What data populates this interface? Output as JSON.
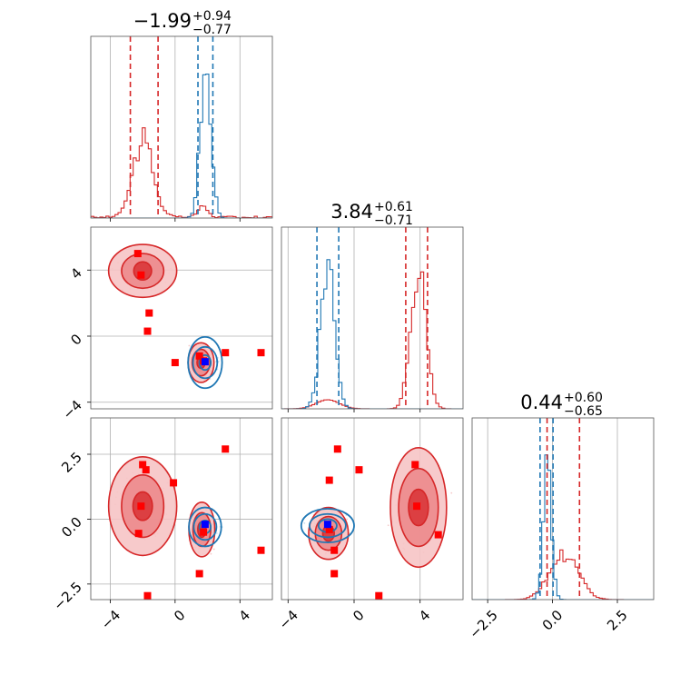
{
  "colors": {
    "red": "#d62728",
    "blue": "#1f77b4",
    "grid": "#b0b0b0",
    "marker_blue": "#0000ff",
    "marker_red": "#ff0000"
  },
  "chart_data": {
    "type": "corner",
    "panels": [
      {
        "id": "hist_x",
        "type": "histogram",
        "title": {
          "value": "−1.99",
          "upper": "+0.94",
          "lower": "−0.77"
        },
        "xlim": [
          -5.2,
          6.0
        ],
        "xticks": [
          -4,
          0,
          4
        ],
        "quantiles": {
          "red": [
            -2.76,
            -1.05
          ],
          "blue": [
            1.41,
            2.33
          ]
        },
        "series": [
          {
            "color": "red",
            "center": -1.99,
            "sigma": 0.62,
            "peak": 0.42,
            "baseline": 0.01
          },
          {
            "color": "blue",
            "center": 1.88,
            "sigma": 0.32,
            "peak": 0.88,
            "baseline": 0.0
          }
        ]
      },
      {
        "id": "hist_y",
        "type": "histogram",
        "title": {
          "value": "3.84",
          "upper": "+0.61",
          "lower": "−0.71"
        },
        "xlim": [
          -4.4,
          6.6
        ],
        "xticks": [
          -4,
          0,
          4
        ],
        "tick_labels": [
          "−4",
          "0",
          "4"
        ],
        "quantiles": {
          "red": [
            3.13,
            4.45
          ],
          "blue": [
            -2.25,
            -0.93
          ]
        },
        "series": [
          {
            "color": "red",
            "center": 3.9,
            "sigma": 0.45,
            "peak": 0.82,
            "baseline": 0.0
          },
          {
            "color": "blue",
            "center": -1.6,
            "sigma": 0.42,
            "peak": 0.78,
            "baseline": 0.0
          }
        ]
      },
      {
        "id": "hist_z",
        "type": "histogram",
        "title": {
          "value": "0.44",
          "upper": "+0.60",
          "lower": "−0.65"
        },
        "xlim": [
          -3.1,
          3.9
        ],
        "xticks": [
          -2.5,
          0,
          2.5
        ],
        "tick_labels": [
          "−2.5",
          "0.0",
          "2.5"
        ],
        "quantiles": {
          "red": [
            -0.21,
            1.04
          ],
          "blue": [
            -0.48,
            0.02
          ]
        },
        "series": [
          {
            "color": "red",
            "center": 0.44,
            "sigma": 0.55,
            "peak": 0.25,
            "baseline": 0.0
          },
          {
            "color": "blue",
            "center": -0.2,
            "sigma": 0.16,
            "peak": 0.74,
            "baseline": 0.0
          }
        ]
      },
      {
        "id": "scatter_xy",
        "type": "contour",
        "xlim": [
          -5.2,
          6.0
        ],
        "ylim": [
          -4.4,
          6.6
        ],
        "yticks": [
          -4,
          0,
          4
        ],
        "ytick_labels": [
          "−4",
          "0",
          "4"
        ],
        "red_clusters": [
          {
            "cx": -2.0,
            "cy": 3.95,
            "rx": [
              0.55,
              1.3,
              2.1
            ],
            "ry": [
              0.55,
              1.05,
              1.6
            ]
          },
          {
            "cx": 1.6,
            "cy": -1.6,
            "rx": [
              0.25,
              0.55,
              0.8
            ],
            "ry": [
              0.35,
              0.8,
              1.2
            ]
          }
        ],
        "blue_cluster": {
          "cx": 1.85,
          "cy": -1.6,
          "rx": [
            0.35,
            0.75,
            1.05
          ],
          "ry": [
            0.45,
            0.95,
            1.55
          ]
        },
        "red_markers": [
          [
            -2.3,
            5.0
          ],
          [
            -2.1,
            3.7
          ],
          [
            -1.6,
            1.4
          ],
          [
            -1.7,
            0.3
          ],
          [
            0.0,
            -1.6
          ],
          [
            3.1,
            -1.0
          ],
          [
            5.3,
            -1.0
          ],
          [
            1.5,
            -1.2
          ],
          [
            1.75,
            -1.5
          ]
        ],
        "blue_marker": [
          1.85,
          -1.55
        ]
      },
      {
        "id": "scatter_xz",
        "type": "contour",
        "xlim": [
          -5.2,
          6.0
        ],
        "ylim": [
          -3.1,
          3.9
        ],
        "xticks": [
          -4,
          0,
          4
        ],
        "xtick_labels": [
          "−4",
          "0",
          "4"
        ],
        "yticks": [
          -2.5,
          0,
          2.5
        ],
        "ytick_labels": [
          "−2.5",
          "0.0",
          "2.5"
        ],
        "red_clusters": [
          {
            "cx": -2.0,
            "cy": 0.5,
            "rx": [
              0.6,
              1.3,
              2.1
            ],
            "ry": [
              0.55,
              1.2,
              1.9
            ]
          },
          {
            "cx": 1.65,
            "cy": -0.4,
            "rx": [
              0.25,
              0.55,
              0.8
            ],
            "ry": [
              0.3,
              0.65,
              1.05
            ]
          }
        ],
        "blue_cluster": {
          "cx": 1.85,
          "cy": -0.3,
          "rx": [
            0.35,
            0.7,
            1.0
          ],
          "ry": [
            0.25,
            0.5,
            0.75
          ]
        },
        "red_markers": [
          [
            -2.0,
            2.1
          ],
          [
            -1.8,
            1.9
          ],
          [
            -2.1,
            0.5
          ],
          [
            -2.25,
            -0.55
          ],
          [
            -0.1,
            1.4
          ],
          [
            3.1,
            2.7
          ],
          [
            5.3,
            -1.2
          ],
          [
            1.5,
            -2.1
          ],
          [
            -1.7,
            -2.95
          ],
          [
            1.75,
            -0.5
          ]
        ],
        "blue_marker": [
          1.85,
          -0.2
        ]
      },
      {
        "id": "scatter_yz",
        "type": "contour",
        "xlim": [
          -4.4,
          6.6
        ],
        "ylim": [
          -3.1,
          3.9
        ],
        "xticks": [
          -4,
          0,
          4
        ],
        "xtick_labels": [
          "−4",
          "0",
          "4"
        ],
        "red_clusters": [
          {
            "cx": 3.9,
            "cy": 0.45,
            "rx": [
              0.6,
              1.2,
              1.7
            ],
            "ry": [
              0.7,
              1.5,
              2.3
            ]
          },
          {
            "cx": -1.55,
            "cy": -0.55,
            "rx": [
              0.35,
              0.8,
              1.2
            ],
            "ry": [
              0.3,
              0.65,
              1.0
            ]
          }
        ],
        "blue_cluster": {
          "cx": -1.6,
          "cy": -0.25,
          "rx": [
            0.55,
            1.1,
            1.6
          ],
          "ry": [
            0.25,
            0.45,
            0.65
          ]
        },
        "red_markers": [
          [
            -1.0,
            2.7
          ],
          [
            -1.5,
            1.5
          ],
          [
            0.3,
            1.9
          ],
          [
            3.7,
            2.1
          ],
          [
            3.8,
            0.5
          ],
          [
            5.1,
            -0.6
          ],
          [
            -1.2,
            -1.2
          ],
          [
            -1.2,
            -2.1
          ],
          [
            1.5,
            -2.95
          ],
          [
            -1.5,
            -0.4
          ]
        ],
        "blue_marker": [
          -1.6,
          -0.2
        ]
      }
    ]
  }
}
